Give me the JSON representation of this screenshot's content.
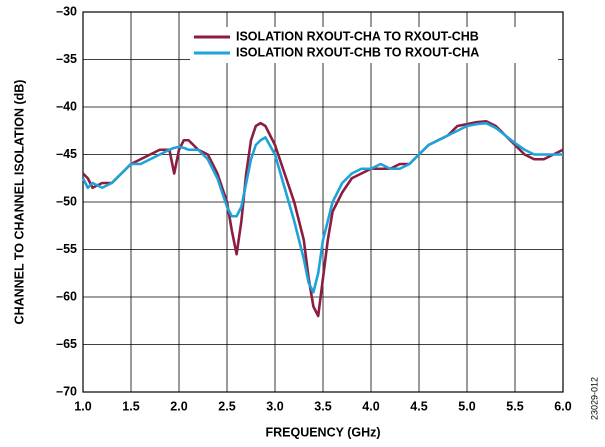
{
  "chart_data": {
    "type": "line",
    "xlabel": "FREQUENCY (GHz)",
    "ylabel": "CHANNEL TO CHANNEL ISOLATION (dB)",
    "footnote": "23029-012",
    "x": [
      1.0,
      1.05,
      1.1,
      1.2,
      1.3,
      1.4,
      1.5,
      1.6,
      1.7,
      1.8,
      1.9,
      1.95,
      2.0,
      2.05,
      2.1,
      2.2,
      2.3,
      2.4,
      2.5,
      2.55,
      2.6,
      2.65,
      2.7,
      2.75,
      2.8,
      2.85,
      2.9,
      3.0,
      3.1,
      3.2,
      3.3,
      3.35,
      3.4,
      3.45,
      3.5,
      3.55,
      3.6,
      3.7,
      3.8,
      3.9,
      4.0,
      4.1,
      4.2,
      4.3,
      4.4,
      4.5,
      4.6,
      4.7,
      4.8,
      4.9,
      5.0,
      5.1,
      5.2,
      5.3,
      5.4,
      5.5,
      5.6,
      5.7,
      5.8,
      5.9,
      6.0
    ],
    "series": [
      {
        "name": "ISOLATION RXOUT-CHA TO RXOUT-CHB",
        "color": "#8c1d40",
        "values": [
          -47,
          -47.5,
          -48.5,
          -48,
          -48,
          -47,
          -46,
          -45.5,
          -45,
          -44.5,
          -44.5,
          -47,
          -44.5,
          -43.5,
          -43.5,
          -44.5,
          -45,
          -47,
          -50,
          -53,
          -55.5,
          -52,
          -47,
          -43.5,
          -42,
          -41.7,
          -42,
          -44,
          -47,
          -50,
          -54,
          -58,
          -61,
          -62,
          -58,
          -54,
          -51,
          -49,
          -47.5,
          -47,
          -46.5,
          -46.5,
          -46.5,
          -46,
          -46,
          -45,
          -44,
          -43.5,
          -43,
          -42,
          -41.8,
          -41.6,
          -41.5,
          -42,
          -43,
          -44,
          -45,
          -45.5,
          -45.5,
          -45,
          -44.5
        ]
      },
      {
        "name": "ISOLATION RXOUT-CHB TO RXOUT-CHA",
        "color": "#1ea3d9",
        "values": [
          -47.5,
          -48.5,
          -48,
          -48.5,
          -48,
          -47,
          -46,
          -46,
          -45.5,
          -45,
          -44.5,
          -44.3,
          -44.2,
          -44.3,
          -44.5,
          -44.5,
          -45.5,
          -47.5,
          -50.5,
          -51.5,
          -51.5,
          -50.5,
          -48,
          -45.5,
          -44,
          -43.5,
          -43.2,
          -45,
          -48.5,
          -52,
          -56,
          -58.5,
          -59.5,
          -57.5,
          -54,
          -52,
          -50,
          -48,
          -47,
          -46.5,
          -46.5,
          -46,
          -46.5,
          -46.5,
          -46,
          -45,
          -44,
          -43.5,
          -43,
          -42.5,
          -42,
          -41.8,
          -41.7,
          -42.2,
          -43,
          -43.8,
          -44.5,
          -45,
          -45,
          -45,
          -45
        ]
      }
    ],
    "xlim": [
      1.0,
      6.0
    ],
    "xticks": [
      {
        "value": 1.0,
        "label": "1.0"
      },
      1.5,
      {
        "value": 2.0,
        "label": "2.0"
      },
      2.5,
      {
        "value": 3.0,
        "label": "3.0"
      },
      3.5,
      {
        "value": 4.0,
        "label": "4.0"
      },
      4.5,
      {
        "value": 5.0,
        "label": "5.0"
      },
      5.5,
      {
        "value": 6.0,
        "label": "6.0"
      }
    ],
    "ylim": [
      -70,
      -30
    ],
    "yticks": [
      {
        "value": -70,
        "label": "–70"
      },
      {
        "value": -65,
        "label": "–65"
      },
      {
        "value": -60,
        "label": "–60"
      },
      {
        "value": -55,
        "label": "–55"
      },
      {
        "value": -50,
        "label": "–50"
      },
      {
        "value": -45,
        "label": "–45"
      },
      {
        "value": -40,
        "label": "–40"
      },
      {
        "value": -35,
        "label": "–35"
      },
      {
        "value": -30,
        "label": "–30"
      }
    ],
    "grid": true,
    "legend": "upper right"
  }
}
